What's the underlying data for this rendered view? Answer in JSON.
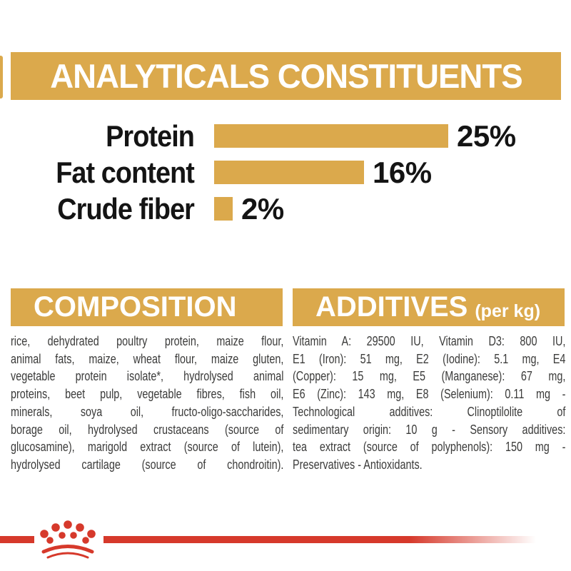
{
  "colors": {
    "gold": "#DBA94C",
    "brand_red": "#D6392B",
    "ink": "#141414",
    "body_text": "#3B3B3A",
    "header_text": "#FFFFFF",
    "background": "#FFFFFF"
  },
  "header": {
    "title": "ANALYTICALS CONSTITUENTS"
  },
  "chart_data": {
    "type": "bar",
    "orientation": "horizontal",
    "title": "ANALYTICALS CONSTITUENTS",
    "categories": [
      "Protein",
      "Fat content",
      "Crude fiber"
    ],
    "values": [
      25,
      16,
      2
    ],
    "value_labels": [
      "25%",
      "16%",
      "2%"
    ],
    "unit": "%",
    "xlim": [
      0,
      25
    ],
    "grid": false,
    "legend": false,
    "bar_color": "#DBA94C"
  },
  "composition": {
    "title": "COMPOSITION",
    "text": "rice, dehydrated poultry protein, maize flour, animal fats, maize, wheat flour, maize gluten, vegetable protein isolate*, hydrolysed animal proteins, beet pulp, vegetable fibres, fish oil, minerals, soya oil, fructo-oligo-saccharides, borage oil, hydrolysed crustaceans (source of glucosamine), marigold extract (source of lutein), hydrolysed cartilage (source of chondroitin).",
    "lines": [
      "rice, dehydrated poultry protein, maize flour,",
      "animal fats, maize, wheat flour, maize gluten,",
      "vegetable protein isolate*, hydrolysed animal",
      "proteins, beet pulp, vegetable fibres, fish oil,",
      "minerals, soya oil, fructo-oligo-saccharides,",
      "borage oil, hydrolysed crustaceans (source of",
      "glucosamine), marigold extract (source of lutein),",
      "hydrolysed cartilage (source of chondroitin)."
    ]
  },
  "additives": {
    "title": "ADDITIVES",
    "unit_suffix": "(per kg)",
    "text": "Vitamin A: 29500 IU, Vitamin D3: 800 IU, E1 (Iron): 51 mg, E2 (Iodine): 5.1 mg, E4 (Copper): 15 mg, E5 (Manganese): 67 mg, E6 (Zinc): 143 mg, E8 (Selenium): 0.11 mg - Technological additives: Clinoptilolite of sedimentary origin: 10 g - Sensory additives: tea extract (source of polyphenols): 150 mg - Preservatives - Antioxidants.",
    "lines": [
      "Vitamin A: 29500 IU, Vitamin D3: 800 IU,",
      "E1 (Iron): 51 mg, E2 (Iodine): 5.1 mg, E4",
      "(Copper): 15 mg, E5 (Manganese): 67 mg,",
      "E6 (Zinc): 143 mg, E8 (Selenium): 0.11 mg -",
      "Technological additives: Clinoptilolite of",
      "sedimentary origin: 10 g - Sensory additives:",
      "tea extract (source of polyphenols): 150 mg -",
      "Preservatives - Antioxidants."
    ]
  },
  "footer": {
    "brand_logo": "royal-canin-crown"
  }
}
